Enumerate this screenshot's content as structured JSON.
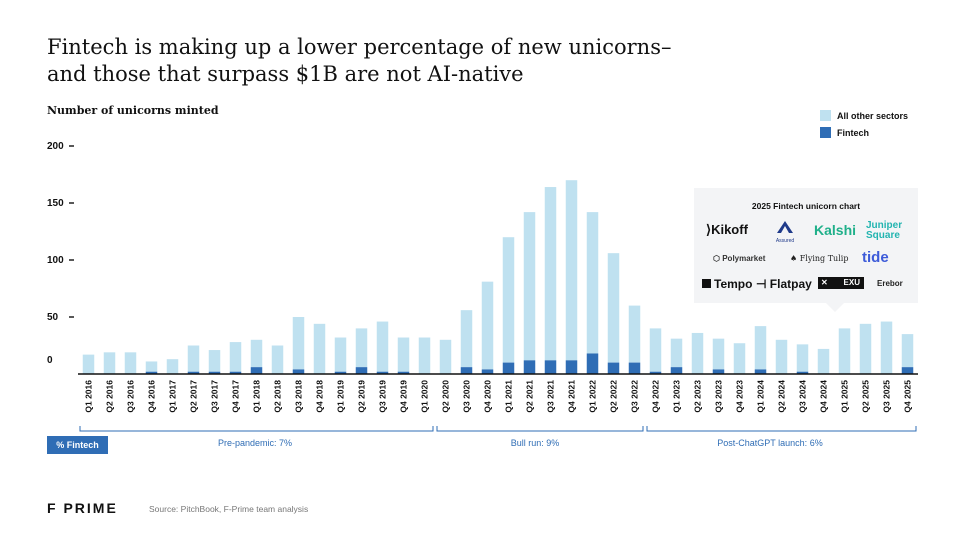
{
  "chart_data": {
    "type": "bar",
    "title": "Fintech is making up a lower percentage of new unicorns–\nand those that surpass $1B are not AI-native",
    "ylabel": "Number of unicorns minted",
    "xlabel": "",
    "ylim": [
      0,
      200
    ],
    "yticks": [
      "200",
      "150",
      "100",
      "50",
      "0"
    ],
    "ytick_values": [
      200,
      150,
      100,
      50,
      0
    ],
    "stacked": true,
    "categories": [
      "Q1 2016",
      "Q2 2016",
      "Q3 2016",
      "Q4 2016",
      "Q1 2017",
      "Q2 2017",
      "Q3 2017",
      "Q4 2017",
      "Q1 2018",
      "Q2 2018",
      "Q3 2018",
      "Q4 2018",
      "Q1 2019",
      "Q2 2019",
      "Q3 2019",
      "Q4 2019",
      "Q1 2020",
      "Q2 2020",
      "Q3 2020",
      "Q4 2020",
      "Q1 2021",
      "Q2 2021",
      "Q3 2021",
      "Q4 2021",
      "Q1 2022",
      "Q2 2022",
      "Q3 2022",
      "Q4 2022",
      "Q1 2023",
      "Q2 2023",
      "Q3 2023",
      "Q4 2023",
      "Q1 2024",
      "Q2 2024",
      "Q3 2024",
      "Q4 2024",
      "Q1 2025",
      "Q2 2025",
      "Q3 2025",
      "Q4 2025"
    ],
    "series": [
      {
        "name": "Fintech",
        "color": "#2f6db5",
        "values": [
          0,
          0,
          0,
          2,
          0,
          2,
          2,
          2,
          6,
          0,
          4,
          0,
          2,
          6,
          2,
          2,
          0,
          0,
          6,
          4,
          10,
          12,
          12,
          12,
          18,
          10,
          10,
          2,
          6,
          0,
          4,
          0,
          4,
          0,
          2,
          0,
          0,
          0,
          0,
          6
        ]
      },
      {
        "name": "All other sectors",
        "color": "#bfe1f0",
        "values": [
          17,
          19,
          19,
          9,
          13,
          23,
          19,
          26,
          24,
          25,
          46,
          44,
          30,
          34,
          44,
          30,
          32,
          30,
          50,
          77,
          110,
          130,
          152,
          158,
          124,
          96,
          50,
          38,
          25,
          36,
          27,
          27,
          38,
          30,
          24,
          22,
          40,
          44,
          46,
          29
        ]
      }
    ],
    "legend": [
      "All other sectors",
      "Fintech"
    ],
    "legend_position": "top-right",
    "grid": false,
    "periods": [
      {
        "label": "Pre-pandemic:",
        "value": "7%",
        "start": 0,
        "end": 16
      },
      {
        "label": "Bull run:",
        "value": "9%",
        "start": 17,
        "end": 26
      },
      {
        "label": "Post-ChatGPT launch:",
        "value": "6%",
        "start": 27,
        "end": 39
      }
    ],
    "pct_label": "% Fintech"
  },
  "inset": {
    "title": "2025 Fintech unicorn chart",
    "logos": [
      "Kikoff",
      "Assured",
      "Kalshi",
      "Juniper Square",
      "Polymarket",
      "Flying Tulip",
      "tide",
      "Tempo",
      "Flatpay",
      "EXU",
      "Erebor"
    ]
  },
  "footer": {
    "brand": "F PRIME",
    "source": "Source: PitchBook, F-Prime team analysis"
  },
  "colors": {
    "fintech": "#2f6db5",
    "other": "#bfe1f0",
    "axis": "#111111",
    "accent": "#2f6db5"
  }
}
